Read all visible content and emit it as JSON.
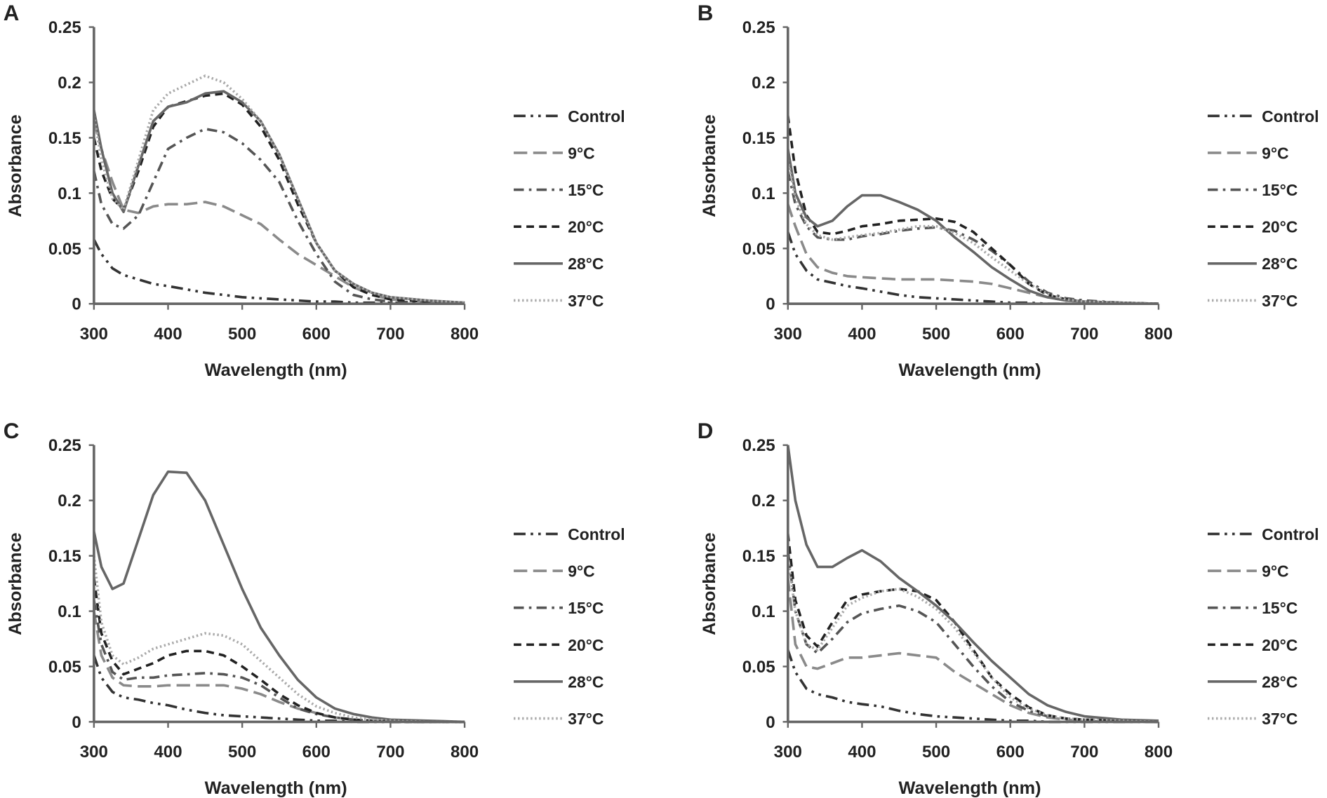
{
  "chart_data": [
    {
      "panel": "A",
      "type": "line",
      "xlabel": "Wavelength (nm)",
      "ylabel": "Absorbance",
      "xlim": [
        300,
        800
      ],
      "ylim": [
        0,
        0.25
      ],
      "xticks": [
        "300",
        "400",
        "500",
        "600",
        "700",
        "800"
      ],
      "yticks": [
        "0",
        "0.05",
        "0.1",
        "0.15",
        "0.2",
        "0.25"
      ],
      "legend_position": "right",
      "grid": false,
      "x": [
        300,
        310,
        325,
        340,
        360,
        380,
        400,
        425,
        450,
        475,
        500,
        525,
        550,
        575,
        600,
        625,
        650,
        675,
        700,
        750,
        800
      ],
      "series": [
        {
          "name": "Control",
          "values": [
            0.058,
            0.045,
            0.032,
            0.026,
            0.022,
            0.018,
            0.016,
            0.013,
            0.01,
            0.008,
            0.006,
            0.005,
            0.004,
            0.003,
            0.002,
            0.002,
            0.001,
            0.001,
            0.001,
            0,
            0
          ]
        },
        {
          "name": "9°C",
          "values": [
            0.165,
            0.14,
            0.11,
            0.085,
            0.082,
            0.088,
            0.09,
            0.09,
            0.092,
            0.088,
            0.08,
            0.072,
            0.058,
            0.045,
            0.035,
            0.025,
            0.015,
            0.008,
            0.004,
            0.002,
            0.001
          ]
        },
        {
          "name": "15°C",
          "values": [
            0.12,
            0.09,
            0.072,
            0.068,
            0.08,
            0.11,
            0.14,
            0.15,
            0.158,
            0.155,
            0.145,
            0.13,
            0.11,
            0.075,
            0.045,
            0.02,
            0.008,
            0.004,
            0.002,
            0.001,
            0
          ]
        },
        {
          "name": "20°C",
          "values": [
            0.15,
            0.12,
            0.095,
            0.085,
            0.12,
            0.16,
            0.178,
            0.183,
            0.188,
            0.19,
            0.18,
            0.16,
            0.13,
            0.09,
            0.055,
            0.03,
            0.015,
            0.008,
            0.004,
            0.002,
            0.001
          ]
        },
        {
          "name": "28°C",
          "values": [
            0.175,
            0.14,
            0.1,
            0.083,
            0.125,
            0.165,
            0.178,
            0.182,
            0.19,
            0.192,
            0.182,
            0.165,
            0.135,
            0.095,
            0.055,
            0.03,
            0.018,
            0.01,
            0.006,
            0.003,
            0.001
          ]
        },
        {
          "name": "37°C",
          "values": [
            0.17,
            0.13,
            0.095,
            0.085,
            0.13,
            0.175,
            0.19,
            0.198,
            0.206,
            0.2,
            0.185,
            0.165,
            0.135,
            0.095,
            0.055,
            0.03,
            0.018,
            0.01,
            0.006,
            0.003,
            0.001
          ]
        }
      ]
    },
    {
      "panel": "B",
      "type": "line",
      "xlabel": "Wavelength (nm)",
      "ylabel": "Absorbance",
      "xlim": [
        300,
        800
      ],
      "ylim": [
        0,
        0.25
      ],
      "xticks": [
        "300",
        "400",
        "500",
        "600",
        "700",
        "800"
      ],
      "yticks": [
        "0",
        "0.05",
        "0.1",
        "0.15",
        "0.2",
        "0.25"
      ],
      "legend_position": "right",
      "grid": false,
      "x": [
        300,
        310,
        325,
        340,
        360,
        380,
        400,
        425,
        450,
        475,
        500,
        525,
        550,
        575,
        600,
        625,
        650,
        675,
        700,
        750,
        800
      ],
      "series": [
        {
          "name": "Control",
          "values": [
            0.065,
            0.045,
            0.03,
            0.022,
            0.019,
            0.016,
            0.014,
            0.011,
            0.008,
            0.006,
            0.005,
            0.004,
            0.003,
            0.002,
            0.001,
            0.001,
            0,
            0,
            0,
            0,
            0
          ]
        },
        {
          "name": "9°C",
          "values": [
            0.09,
            0.07,
            0.045,
            0.033,
            0.028,
            0.025,
            0.024,
            0.023,
            0.022,
            0.022,
            0.022,
            0.021,
            0.02,
            0.018,
            0.014,
            0.01,
            0.006,
            0.003,
            0.002,
            0.001,
            0
          ]
        },
        {
          "name": "15°C",
          "values": [
            0.12,
            0.09,
            0.07,
            0.06,
            0.058,
            0.058,
            0.061,
            0.063,
            0.066,
            0.068,
            0.069,
            0.066,
            0.058,
            0.048,
            0.035,
            0.02,
            0.01,
            0.005,
            0.003,
            0.001,
            0
          ]
        },
        {
          "name": "20°C",
          "values": [
            0.17,
            0.12,
            0.08,
            0.065,
            0.063,
            0.066,
            0.07,
            0.072,
            0.075,
            0.076,
            0.077,
            0.074,
            0.065,
            0.05,
            0.035,
            0.018,
            0.008,
            0.004,
            0.002,
            0.001,
            0
          ]
        },
        {
          "name": "28°C",
          "values": [
            0.14,
            0.1,
            0.078,
            0.07,
            0.075,
            0.088,
            0.098,
            0.098,
            0.092,
            0.085,
            0.075,
            0.06,
            0.047,
            0.033,
            0.022,
            0.012,
            0.006,
            0.003,
            0.002,
            0.001,
            0
          ]
        },
        {
          "name": "37°C",
          "values": [
            0.13,
            0.095,
            0.072,
            0.062,
            0.058,
            0.06,
            0.062,
            0.064,
            0.067,
            0.07,
            0.07,
            0.064,
            0.055,
            0.042,
            0.03,
            0.018,
            0.009,
            0.004,
            0.002,
            0.001,
            0
          ]
        }
      ]
    },
    {
      "panel": "C",
      "type": "line",
      "xlabel": "Wavelength (nm)",
      "ylabel": "Absorbance",
      "xlim": [
        300,
        800
      ],
      "ylim": [
        0,
        0.25
      ],
      "xticks": [
        "300",
        "400",
        "500",
        "600",
        "700",
        "800"
      ],
      "yticks": [
        "0",
        "0.05",
        "0.1",
        "0.15",
        "0.2",
        "0.25"
      ],
      "legend_position": "right",
      "grid": false,
      "x": [
        300,
        310,
        325,
        340,
        360,
        380,
        400,
        425,
        450,
        475,
        500,
        525,
        550,
        575,
        600,
        625,
        650,
        675,
        700,
        750,
        800
      ],
      "series": [
        {
          "name": "Control",
          "values": [
            0.06,
            0.04,
            0.027,
            0.022,
            0.02,
            0.017,
            0.015,
            0.011,
            0.008,
            0.006,
            0.005,
            0.004,
            0.003,
            0.002,
            0.001,
            0.001,
            0,
            0,
            0,
            0,
            0
          ]
        },
        {
          "name": "9°C",
          "values": [
            0.1,
            0.06,
            0.04,
            0.033,
            0.032,
            0.032,
            0.033,
            0.033,
            0.033,
            0.033,
            0.03,
            0.025,
            0.018,
            0.012,
            0.008,
            0.004,
            0.002,
            0.001,
            0,
            0,
            0
          ]
        },
        {
          "name": "15°C",
          "values": [
            0.11,
            0.07,
            0.045,
            0.038,
            0.04,
            0.04,
            0.042,
            0.043,
            0.044,
            0.043,
            0.04,
            0.033,
            0.022,
            0.012,
            0.007,
            0.004,
            0.002,
            0.001,
            0,
            0,
            0
          ]
        },
        {
          "name": "20°C",
          "values": [
            0.13,
            0.08,
            0.055,
            0.043,
            0.048,
            0.053,
            0.06,
            0.064,
            0.064,
            0.06,
            0.05,
            0.038,
            0.025,
            0.015,
            0.008,
            0.004,
            0.002,
            0.001,
            0,
            0,
            0
          ]
        },
        {
          "name": "28°C",
          "values": [
            0.172,
            0.14,
            0.12,
            0.125,
            0.165,
            0.205,
            0.226,
            0.225,
            0.2,
            0.16,
            0.12,
            0.085,
            0.06,
            0.038,
            0.022,
            0.012,
            0.007,
            0.004,
            0.002,
            0.001,
            0
          ]
        },
        {
          "name": "37°C",
          "values": [
            0.15,
            0.09,
            0.06,
            0.052,
            0.058,
            0.066,
            0.07,
            0.075,
            0.08,
            0.078,
            0.07,
            0.055,
            0.04,
            0.025,
            0.014,
            0.008,
            0.004,
            0.002,
            0.001,
            0,
            0
          ]
        }
      ]
    },
    {
      "panel": "D",
      "type": "line",
      "xlabel": "Wavelength (nm)",
      "ylabel": "Absorbance",
      "xlim": [
        300,
        800
      ],
      "ylim": [
        0,
        0.25
      ],
      "xticks": [
        "300",
        "400",
        "500",
        "600",
        "700",
        "800"
      ],
      "yticks": [
        "0",
        "0.05",
        "0.1",
        "0.15",
        "0.2",
        "0.25"
      ],
      "legend_position": "right",
      "grid": false,
      "x": [
        300,
        310,
        325,
        340,
        360,
        380,
        400,
        425,
        450,
        475,
        500,
        525,
        550,
        575,
        600,
        625,
        650,
        675,
        700,
        750,
        800
      ],
      "series": [
        {
          "name": "Control",
          "values": [
            0.065,
            0.045,
            0.03,
            0.025,
            0.022,
            0.018,
            0.016,
            0.014,
            0.01,
            0.007,
            0.005,
            0.004,
            0.003,
            0.002,
            0.001,
            0.001,
            0,
            0,
            0,
            0,
            0
          ]
        },
        {
          "name": "9°C",
          "values": [
            0.13,
            0.07,
            0.05,
            0.048,
            0.053,
            0.058,
            0.058,
            0.06,
            0.062,
            0.06,
            0.058,
            0.045,
            0.035,
            0.025,
            0.015,
            0.008,
            0.004,
            0.002,
            0.001,
            0,
            0
          ]
        },
        {
          "name": "15°C",
          "values": [
            0.155,
            0.1,
            0.07,
            0.062,
            0.075,
            0.09,
            0.098,
            0.102,
            0.105,
            0.1,
            0.09,
            0.07,
            0.05,
            0.032,
            0.018,
            0.01,
            0.005,
            0.003,
            0.002,
            0.001,
            0
          ]
        },
        {
          "name": "20°C",
          "values": [
            0.17,
            0.11,
            0.078,
            0.068,
            0.09,
            0.11,
            0.115,
            0.118,
            0.12,
            0.118,
            0.11,
            0.09,
            0.065,
            0.04,
            0.025,
            0.013,
            0.006,
            0.003,
            0.002,
            0.001,
            0
          ]
        },
        {
          "name": "28°C",
          "values": [
            0.25,
            0.2,
            0.16,
            0.14,
            0.14,
            0.148,
            0.155,
            0.145,
            0.13,
            0.118,
            0.105,
            0.09,
            0.072,
            0.055,
            0.04,
            0.025,
            0.015,
            0.009,
            0.005,
            0.002,
            0.001
          ]
        },
        {
          "name": "37°C",
          "values": [
            0.15,
            0.1,
            0.07,
            0.065,
            0.085,
            0.105,
            0.112,
            0.118,
            0.12,
            0.113,
            0.102,
            0.085,
            0.063,
            0.04,
            0.022,
            0.012,
            0.006,
            0.003,
            0.002,
            0.001,
            0
          ]
        }
      ]
    }
  ],
  "series_styles": {
    "Control": {
      "color": "#333333",
      "dash": "dash-dot-dot"
    },
    "9°C": {
      "color": "#8a8a8a",
      "dash": "long-dash"
    },
    "15°C": {
      "color": "#555555",
      "dash": "dash-dot"
    },
    "20°C": {
      "color": "#222222",
      "dash": "dash"
    },
    "28°C": {
      "color": "#666666",
      "dash": "solid"
    },
    "37°C": {
      "color": "#aaaaaa",
      "dash": "dotted"
    }
  }
}
